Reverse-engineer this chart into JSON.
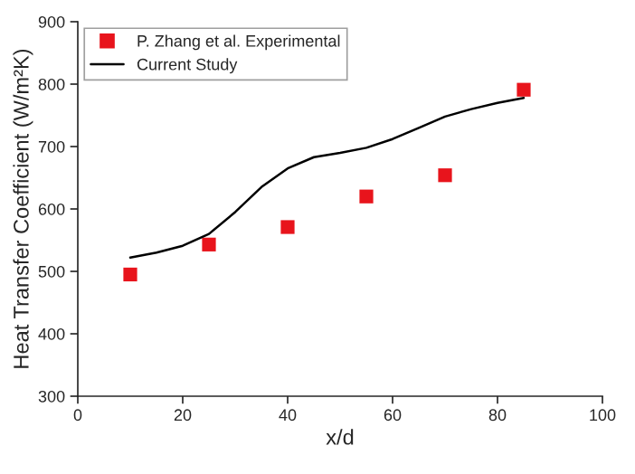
{
  "chart_data": {
    "type": "scatter",
    "xlabel": "x/d",
    "ylabel": "Heat Transfer Coefficient (W/m²K)",
    "xlim": [
      0,
      100
    ],
    "xticks": [
      0,
      20,
      40,
      60,
      80,
      100
    ],
    "ylim": [
      300,
      900
    ],
    "yticks": [
      300,
      400,
      500,
      600,
      700,
      800,
      900
    ],
    "grid": false,
    "legend": "top left",
    "series": [
      {
        "name": "P. Zhang et al. Experimental",
        "marker": "square",
        "color": "#e8141c",
        "x": [
          10,
          25,
          40,
          55,
          70,
          85
        ],
        "values": [
          495,
          543,
          571,
          620,
          654,
          791
        ]
      },
      {
        "name": "Current Study",
        "type": "line",
        "line_style": "solid",
        "color": "#000000",
        "x": [
          10,
          15,
          20,
          25,
          30,
          35,
          40,
          45,
          50,
          55,
          60,
          65,
          70,
          75,
          80,
          85
        ],
        "values": [
          522,
          530,
          541,
          560,
          595,
          635,
          665,
          683,
          690,
          698,
          712,
          730,
          748,
          760,
          770,
          778
        ]
      }
    ]
  }
}
